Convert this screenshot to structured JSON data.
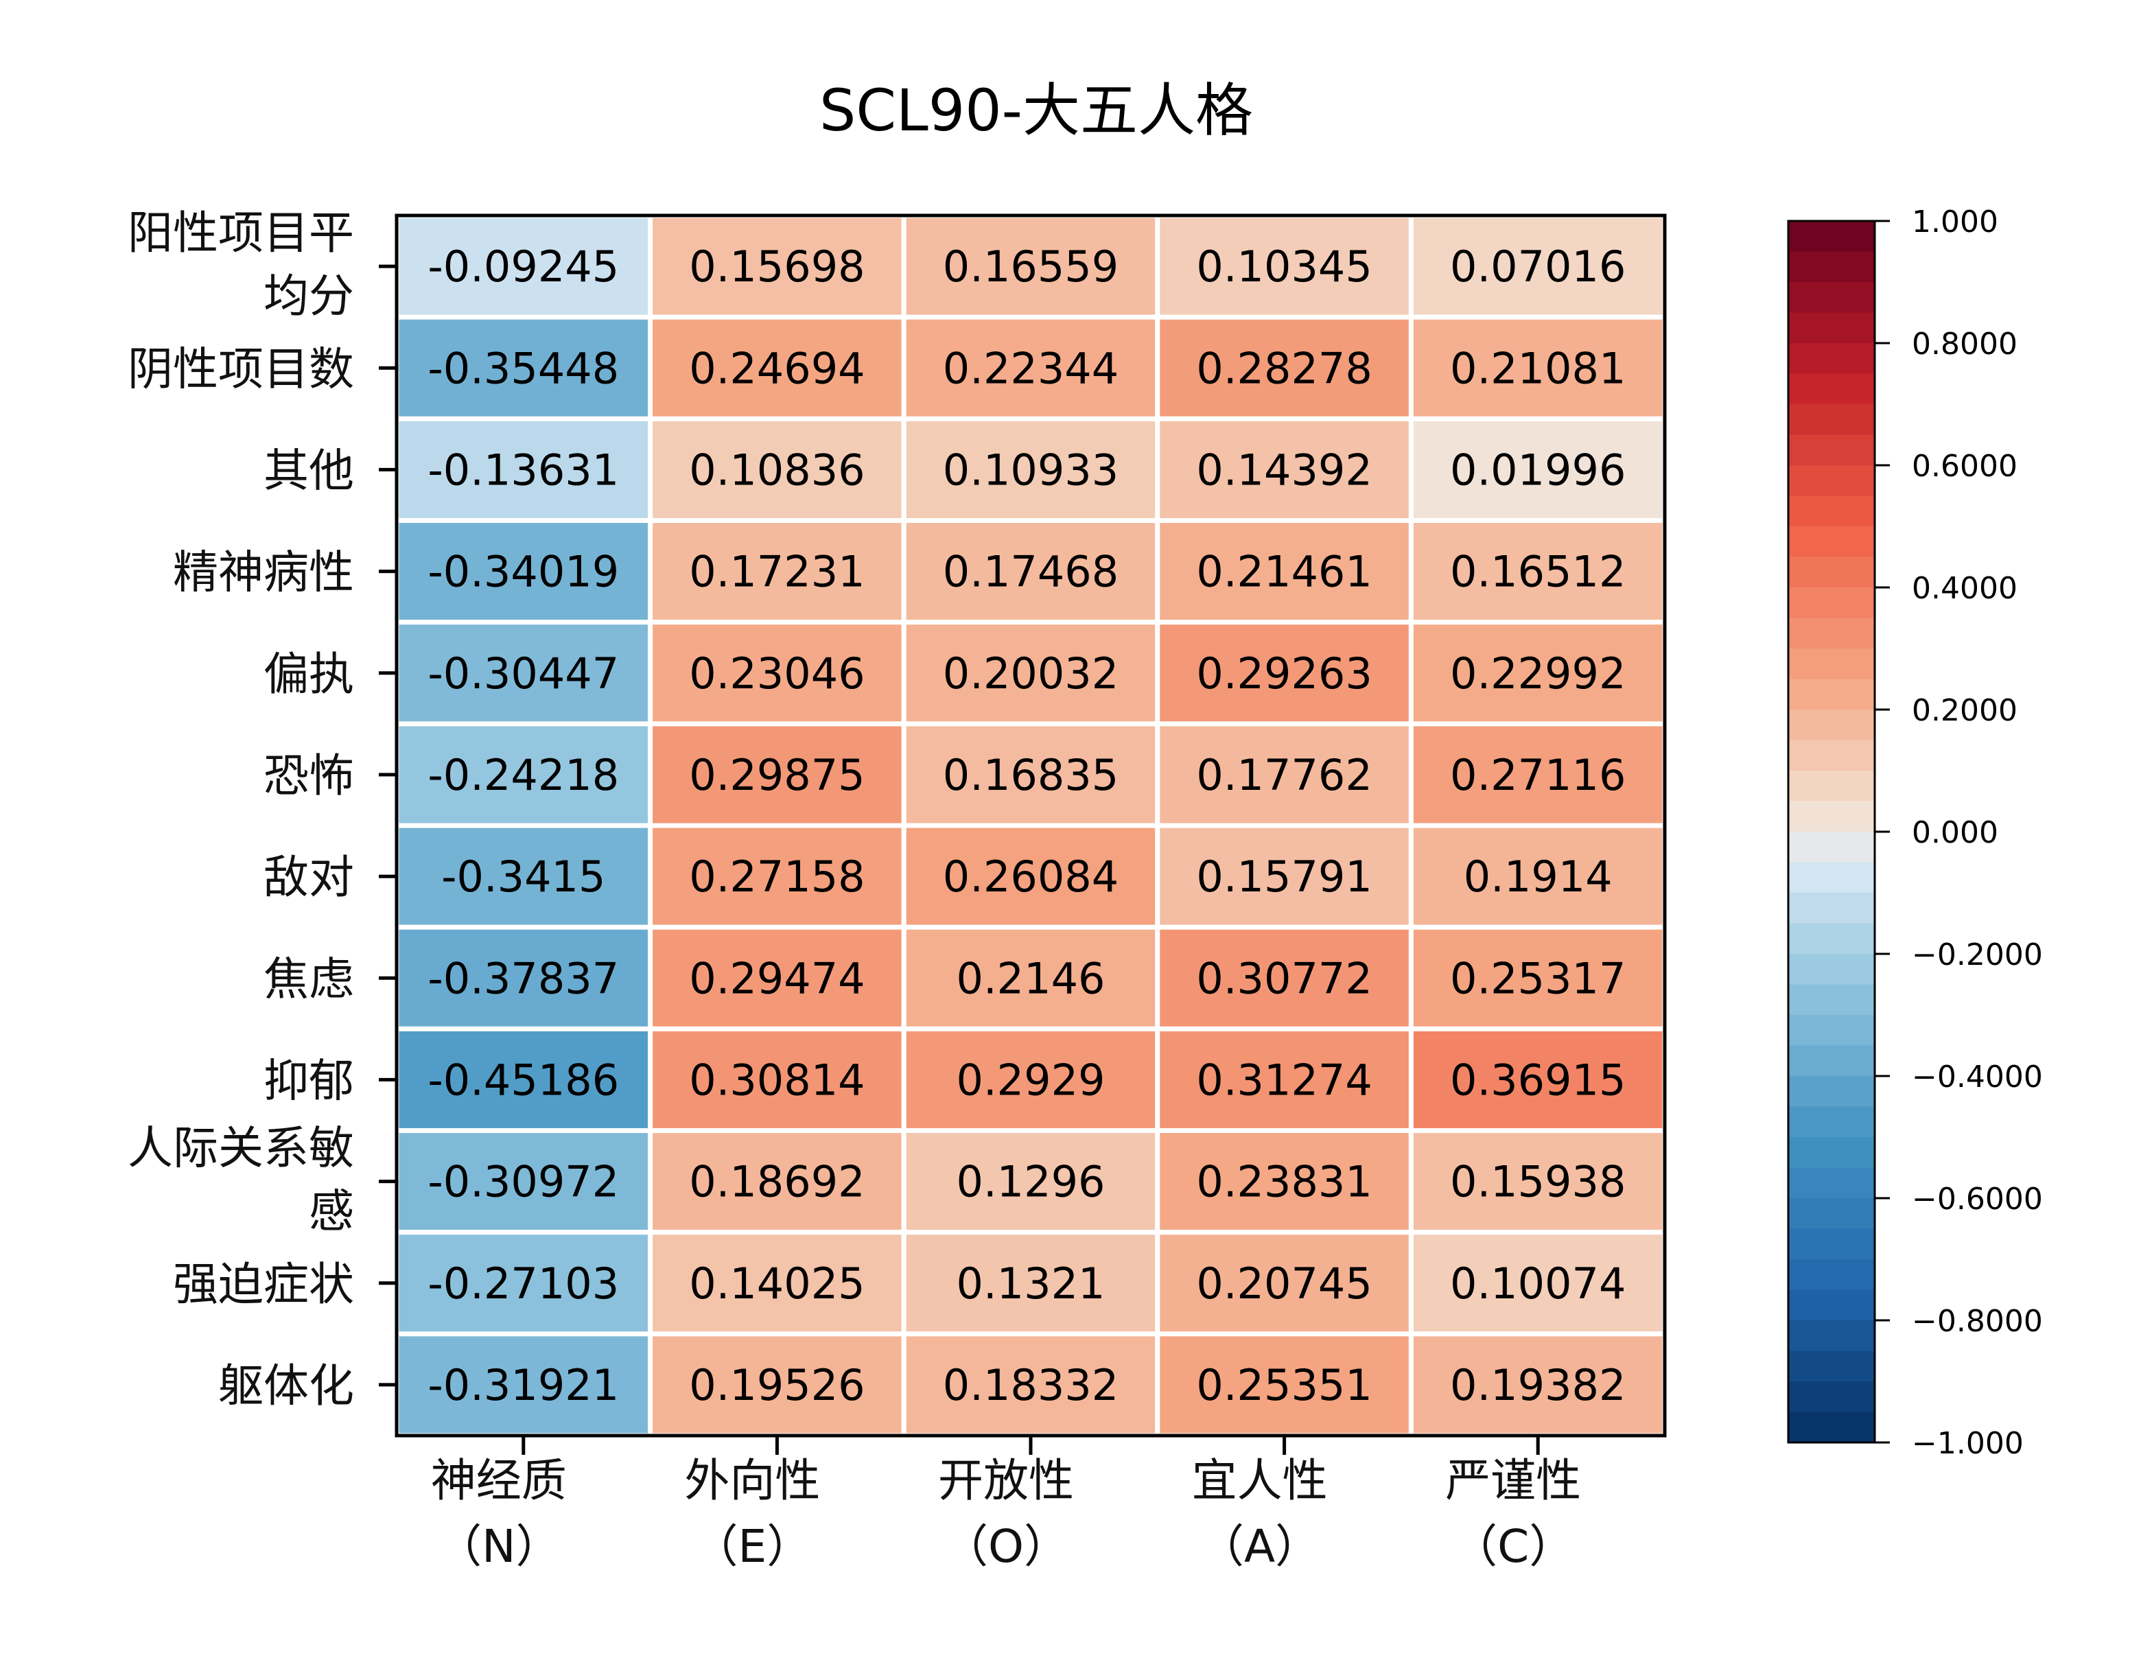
{
  "chart_data": {
    "type": "heatmap",
    "title": "SCL90-大五人格",
    "rows": [
      "阳性项目平均分",
      "阴性项目数",
      "其他",
      "精神病性",
      "偏执",
      "恐怖",
      "敌对",
      "焦虑",
      "抑郁",
      "人际关系敏感",
      "强迫症状",
      "躯体化"
    ],
    "columns": [
      "神经质（N）",
      "外向性（E）",
      "开放性（O）",
      "宜人性（A）",
      "严谨性（C）"
    ],
    "values": [
      [
        "-0.09245",
        "0.15698",
        "0.16559",
        "0.10345",
        "0.07016"
      ],
      [
        "-0.35448",
        "0.24694",
        "0.22344",
        "0.28278",
        "0.21081"
      ],
      [
        "-0.13631",
        "0.10836",
        "0.10933",
        "0.14392",
        "0.01996"
      ],
      [
        "-0.34019",
        "0.17231",
        "0.17468",
        "0.21461",
        "0.16512"
      ],
      [
        "-0.30447",
        "0.23046",
        "0.20032",
        "0.29263",
        "0.22992"
      ],
      [
        "-0.24218",
        "0.29875",
        "0.16835",
        "0.17762",
        "0.27116"
      ],
      [
        "-0.3415",
        "0.27158",
        "0.26084",
        "0.15791",
        "0.1914"
      ],
      [
        "-0.37837",
        "0.29474",
        "0.2146",
        "0.30772",
        "0.25317"
      ],
      [
        "-0.45186",
        "0.30814",
        "0.2929",
        "0.31274",
        "0.36915"
      ],
      [
        "-0.30972",
        "0.18692",
        "0.1296",
        "0.23831",
        "0.15938"
      ],
      [
        "-0.27103",
        "0.14025",
        "0.1321",
        "0.20745",
        "0.10074"
      ],
      [
        "-0.31921",
        "0.19526",
        "0.18332",
        "0.25351",
        "0.19382"
      ]
    ],
    "colorbar": {
      "range": [
        -1,
        1
      ],
      "tick_values": [
        1,
        0.8,
        0.6,
        0.4,
        0.2,
        0,
        -0.2,
        -0.4,
        -0.6,
        -0.8,
        -1
      ],
      "tick_labels": [
        "1.000",
        "0.8000",
        "0.6000",
        "0.4000",
        "0.2000",
        "0.000",
        "−0.2000",
        "−0.4000",
        "−0.6000",
        "−0.8000",
        "−1.000"
      ],
      "colormap": "RdBu_r"
    },
    "colors": {
      "negative_end": "#053061",
      "zero": "#f0e8e0",
      "positive_end": "#67001f"
    }
  }
}
